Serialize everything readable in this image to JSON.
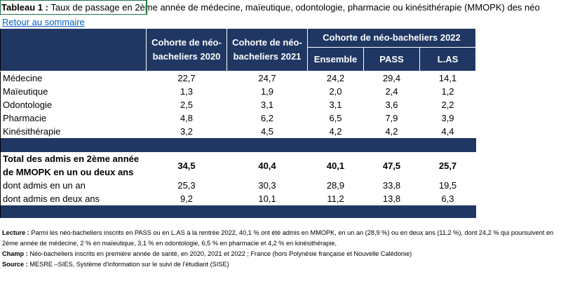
{
  "title": {
    "label": "Tableau 1 :",
    "text": "Taux de passage en 2ème année de médecine, maïeutique, odontologie, pharmacie ou kinésithérapie (MMOPK) des néo"
  },
  "link": "Retour au sommaire",
  "table": {
    "header": {
      "col1": "Cohorte de néo-bacheliers 2020",
      "col2": "Cohorte de néo-bacheliers 2021",
      "group": "Cohorte de néo-bacheliers 2022",
      "sub": [
        "Ensemble",
        "PASS",
        "L.AS"
      ]
    },
    "rows": [
      [
        "Médecine",
        "22,7",
        "24,7",
        "24,2",
        "29,4",
        "14,1"
      ],
      [
        "Maïeutique",
        "1,3",
        "1,9",
        "2,0",
        "2,4",
        "1,2"
      ],
      [
        "Odontologie",
        "2,5",
        "3,1",
        "3,1",
        "3,6",
        "2,2"
      ],
      [
        "Pharmacie",
        "4,8",
        "6,2",
        "6,5",
        "7,9",
        "3,9"
      ],
      [
        "Kinésithérapie",
        "3,2",
        "4,5",
        "4,2",
        "4,2",
        "4,4"
      ]
    ],
    "total": [
      "Total des admis en 2ème année de MMOPK en un ou deux ans",
      "34,5",
      "40,4",
      "40,1",
      "47,5",
      "25,7"
    ],
    "sub_rows": [
      [
        "dont admis en un an",
        "25,3",
        "30,3",
        "28,9",
        "33,8",
        "19,5"
      ],
      [
        "dont admis en deux ans",
        "9,2",
        "10,1",
        "11,2",
        "13,8",
        "6,3"
      ]
    ]
  },
  "notes": [
    {
      "label": "Lecture :",
      "text": "Parmi les néo-bacheliers inscrits en PASS ou en L.AS à la rentrée 2022, 40,1 % ont été admis en MMOPK, en un an (28,9 %) ou en deux ans (11,2 %), dont 24,2 % qui poursuivent en 2ème année de médecine,  2 % en maïeutique, 3,1 % en odontologie, 6,5 % en pharmacie et 4,2 % en kinésithérapie,"
    },
    {
      "label": "Champ :",
      "text": "Néo-bacheliers inscrits en première année de santé, en 2020, 2021 et 2022 ; France (hors Polynésie française et Nouvelle Calédonie)"
    },
    {
      "label": "Source :",
      "text": "MESRE –SIES, Système d'information sur le suivi de l'étudiant (SISE)"
    }
  ]
}
